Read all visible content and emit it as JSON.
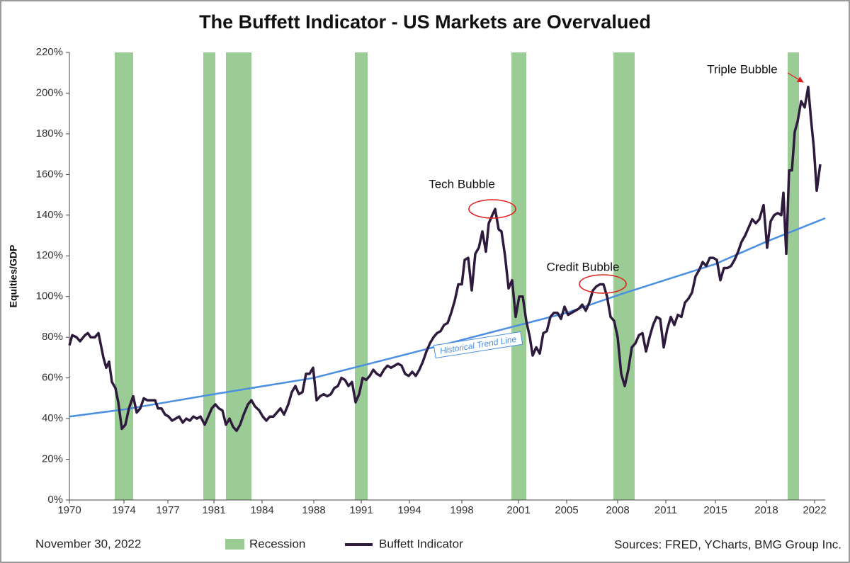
{
  "chart_data": {
    "type": "line",
    "title": "The Buffett Indicator - US Markets are Overvalued",
    "y_label": "Equities/GDP",
    "date": "November 30, 2022",
    "source": "Sources: FRED, YCharts, BMG Group Inc.",
    "xlim": [
      1970,
      2023.35
    ],
    "xticks": [
      {
        "value": 1970,
        "label": "1970"
      },
      {
        "value": 1973.85,
        "label": "1974"
      },
      {
        "value": 1976.95,
        "label": "1977"
      },
      {
        "value": 1980.2,
        "label": "1981"
      },
      {
        "value": 1983.6,
        "label": "1984"
      },
      {
        "value": 1987.25,
        "label": "1988"
      },
      {
        "value": 1990.6,
        "label": "1991"
      },
      {
        "value": 1994,
        "label": "1994"
      },
      {
        "value": 1997.7,
        "label": "1998"
      },
      {
        "value": 2001.7,
        "label": "2001"
      },
      {
        "value": 2005.1,
        "label": "2005"
      },
      {
        "value": 2008.7,
        "label": "2008"
      },
      {
        "value": 2012.1,
        "label": "2011"
      },
      {
        "value": 2015.6,
        "label": "2015"
      },
      {
        "value": 2019.2,
        "label": "2018"
      },
      {
        "value": 2022.6,
        "label": "2022"
      }
    ],
    "ylim": [
      0,
      220
    ],
    "yticks": [
      {
        "value": 0,
        "label": "0%"
      },
      {
        "value": 20,
        "label": "20%"
      },
      {
        "value": 40,
        "label": "40%"
      },
      {
        "value": 60,
        "label": "60%"
      },
      {
        "value": 80,
        "label": "80%"
      },
      {
        "value": 100,
        "label": "100%"
      },
      {
        "value": 120,
        "label": "120%"
      },
      {
        "value": 140,
        "label": "140%"
      },
      {
        "value": 160,
        "label": "160%"
      },
      {
        "value": 180,
        "label": "180%"
      },
      {
        "value": 200,
        "label": "200%"
      },
      {
        "value": 220,
        "label": "220%"
      }
    ],
    "recessions": {
      "name": "Recession",
      "color": "#9ccc95",
      "periods": [
        [
          1973.2,
          1974.5
        ],
        [
          1979.45,
          1980.3
        ],
        [
          1981.05,
          1982.85
        ],
        [
          1990.15,
          1991.05
        ],
        [
          2001.2,
          2002.25
        ],
        [
          2008.4,
          2009.9
        ],
        [
          2020.7,
          2021.5
        ]
      ]
    },
    "trend": {
      "label": "Historical Trend Line",
      "color": "#4b8fe0",
      "x": [
        1970,
        1973.85,
        1980.2,
        1987.25,
        1994,
        2000.1,
        2005.1,
        2008.85,
        2015.6,
        2019.2,
        2023.35
      ],
      "values": [
        41,
        44.5,
        52,
        60,
        72,
        83,
        92,
        101,
        116,
        127,
        138.5
      ]
    },
    "series": [
      {
        "name": "Buffett Indicator",
        "color": "#2d1a3c",
        "x": [
          1970,
          1970.2,
          1970.5,
          1970.75,
          1971.1,
          1971.3,
          1971.5,
          1971.8,
          1972.05,
          1972.4,
          1972.6,
          1972.8,
          1973,
          1973.25,
          1973.45,
          1973.7,
          1973.95,
          1974.2,
          1974.5,
          1974.75,
          1975,
          1975.25,
          1975.5,
          1975.8,
          1976.05,
          1976.25,
          1976.5,
          1976.75,
          1977,
          1977.25,
          1977.5,
          1977.75,
          1978,
          1978.25,
          1978.5,
          1978.75,
          1979,
          1979.25,
          1979.55,
          1979.8,
          1980.05,
          1980.3,
          1980.55,
          1980.8,
          1981.05,
          1981.3,
          1981.55,
          1981.8,
          1982.05,
          1982.3,
          1982.6,
          1982.85,
          1983.1,
          1983.4,
          1983.65,
          1983.9,
          1984.15,
          1984.4,
          1984.65,
          1984.9,
          1985.15,
          1985.45,
          1985.7,
          1985.95,
          1986.2,
          1986.45,
          1986.7,
          1986.95,
          1987.2,
          1987.45,
          1987.7,
          1987.95,
          1988.2,
          1988.45,
          1988.7,
          1988.95,
          1989.2,
          1989.45,
          1989.7,
          1989.95,
          1990.2,
          1990.45,
          1990.7,
          1990.95,
          1991.2,
          1991.45,
          1991.7,
          1991.95,
          1992.2,
          1992.45,
          1992.7,
          1992.95,
          1993.2,
          1993.45,
          1993.7,
          1993.95,
          1994.2,
          1994.45,
          1994.7,
          1994.95,
          1995.2,
          1995.45,
          1995.7,
          1995.95,
          1996.2,
          1996.45,
          1996.7,
          1996.95,
          1997.2,
          1997.45,
          1997.7,
          1997.9,
          1998.15,
          1998.4,
          1998.65,
          1998.9,
          1999.15,
          1999.4,
          1999.6,
          1999.85,
          2000.05,
          2000.3,
          2000.5,
          2000.75,
          2001,
          2001.25,
          2001.5,
          2001.75,
          2002,
          2002.25,
          2002.5,
          2002.7,
          2002.95,
          2003.2,
          2003.45,
          2003.7,
          2003.95,
          2004.2,
          2004.45,
          2004.7,
          2004.95,
          2005.2,
          2005.45,
          2005.7,
          2005.95,
          2006.2,
          2006.45,
          2006.7,
          2006.95,
          2007.2,
          2007.45,
          2007.7,
          2007.95,
          2008.2,
          2008.45,
          2008.7,
          2008.95,
          2009.2,
          2009.45,
          2009.7,
          2009.95,
          2010.2,
          2010.45,
          2010.7,
          2010.95,
          2011.2,
          2011.45,
          2011.7,
          2011.95,
          2012.2,
          2012.45,
          2012.7,
          2012.95,
          2013.2,
          2013.45,
          2013.7,
          2013.95,
          2014.2,
          2014.45,
          2014.7,
          2014.95,
          2015.2,
          2015.45,
          2015.7,
          2015.95,
          2016.2,
          2016.45,
          2016.7,
          2016.95,
          2017.2,
          2017.45,
          2017.7,
          2017.95,
          2018.2,
          2018.45,
          2018.7,
          2019,
          2019.25,
          2019.5,
          2019.75,
          2020,
          2020.25,
          2020.4,
          2020.6,
          2020.8,
          2021,
          2021.2,
          2021.4,
          2021.65,
          2021.9,
          2022.15,
          2022.35,
          2022.55,
          2022.75,
          2023
        ],
        "values": [
          76,
          81,
          80,
          78,
          81,
          82,
          80,
          80,
          82,
          70,
          65,
          68,
          58,
          55,
          48,
          35,
          37,
          45,
          51,
          43,
          45,
          50,
          49,
          49,
          49,
          45,
          45,
          42,
          41,
          39,
          40,
          41,
          38,
          40,
          39,
          41,
          40,
          41,
          37,
          41,
          45,
          47,
          45,
          44,
          37,
          40,
          36,
          34,
          37,
          42,
          47,
          49,
          46,
          44,
          41,
          39,
          41,
          41,
          43,
          45,
          42,
          47,
          53,
          56,
          52,
          53,
          62,
          62,
          65,
          49,
          51,
          52,
          51,
          52,
          55,
          56,
          60,
          59,
          56,
          58,
          48,
          52,
          60,
          59,
          61,
          64,
          62,
          61,
          64,
          66,
          65,
          66,
          67,
          66,
          62,
          61,
          63,
          61,
          64,
          68,
          73,
          77,
          80,
          82,
          83,
          86,
          87,
          92,
          98,
          106,
          106,
          118,
          119,
          103,
          121,
          124,
          132,
          122,
          136,
          140,
          143,
          133,
          132,
          120,
          104,
          108,
          90,
          100,
          100,
          88,
          80,
          71,
          75,
          72,
          82,
          83,
          90,
          92,
          92,
          89,
          95,
          91,
          92,
          93,
          94,
          96,
          93,
          97,
          103,
          105,
          106,
          106,
          100,
          90,
          88,
          80,
          62,
          56,
          64,
          75,
          77,
          81,
          82,
          73,
          80,
          86,
          90,
          89,
          75,
          84,
          90,
          86,
          91,
          90,
          97,
          99,
          102,
          110,
          113,
          117,
          115,
          119,
          119,
          118,
          108,
          114,
          114,
          115,
          118,
          122,
          127,
          130,
          134,
          138,
          136,
          138,
          145,
          124,
          137,
          140,
          141,
          140,
          151,
          121,
          162,
          162,
          181,
          186,
          196,
          193,
          203,
          187,
          173,
          152,
          165
        ]
      }
    ],
    "annotations": [
      "Tech Bubble",
      "Credit Bubble",
      "Triple Bubble"
    ]
  }
}
